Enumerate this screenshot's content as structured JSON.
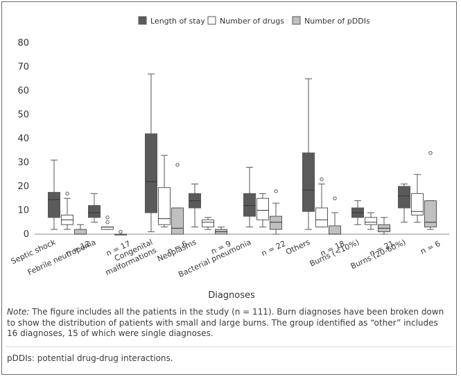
{
  "chart_data": {
    "type": "boxplot",
    "xlabel": "Diagnoses",
    "ylabel": "",
    "ylim": [
      0,
      80
    ],
    "yticks": [
      0,
      10,
      20,
      30,
      40,
      50,
      60,
      70,
      80
    ],
    "legend_position": "top",
    "categories": [
      {
        "label": "Septic shock",
        "n": "n = 12"
      },
      {
        "label": "Febrile neutropenia",
        "n": "n = 17"
      },
      {
        "label": "Congenital malformations",
        "label_lines": [
          "Congenital",
          "malformations"
        ],
        "n": "n = 6"
      },
      {
        "label": "Neoplasms",
        "n": "n = 9"
      },
      {
        "label": "Bacterial pneumonia",
        "n": "n = 22"
      },
      {
        "label": "Others",
        "n": "n = 18"
      },
      {
        "label": "Burns (<10%)",
        "n": "n = 21"
      },
      {
        "label": "Burns (20-60%)",
        "n": "n = 6"
      }
    ],
    "series": [
      {
        "name": "Length of stay",
        "color": "#5a5a5a",
        "boxes": [
          {
            "min": 2,
            "q1": 7,
            "median": 14.5,
            "q3": 17.5,
            "max": 31,
            "outliers": []
          },
          {
            "min": 5,
            "q1": 7,
            "median": 9,
            "q3": 12,
            "max": 17,
            "outliers": []
          },
          {
            "min": 1,
            "q1": 9,
            "median": 22,
            "q3": 42,
            "max": 67,
            "outliers": []
          },
          {
            "min": 3,
            "q1": 11,
            "median": 14,
            "q3": 17,
            "max": 21,
            "outliers": []
          },
          {
            "min": 3,
            "q1": 7.5,
            "median": 12,
            "q3": 17,
            "max": 28,
            "outliers": []
          },
          {
            "min": 2,
            "q1": 9.5,
            "median": 18.5,
            "q3": 34,
            "max": 65,
            "outliers": []
          },
          {
            "min": 4,
            "q1": 7,
            "median": 9,
            "q3": 11,
            "max": 14,
            "outliers": []
          },
          {
            "min": 5,
            "q1": 11,
            "median": 16,
            "q3": 20,
            "max": 21,
            "outliers": []
          }
        ]
      },
      {
        "name": "Number of drugs",
        "color": "#ffffff",
        "boxes": [
          {
            "min": 2,
            "q1": 4,
            "median": 6,
            "q3": 8,
            "max": 15,
            "outliers": [
              17
            ]
          },
          {
            "min": 2,
            "q1": 2,
            "median": 3,
            "q3": 3,
            "max": 3,
            "outliers": [
              5,
              7
            ]
          },
          {
            "min": 3,
            "q1": 4,
            "median": 6.5,
            "q3": 19.5,
            "max": 33,
            "outliers": []
          },
          {
            "min": 2,
            "q1": 3,
            "median": 5,
            "q3": 6,
            "max": 7,
            "outliers": []
          },
          {
            "min": 3,
            "q1": 6,
            "median": 10,
            "q3": 15,
            "max": 17,
            "outliers": []
          },
          {
            "min": 3,
            "q1": 3,
            "median": 6,
            "q3": 11,
            "max": 21,
            "outliers": [
              23
            ]
          },
          {
            "min": 2,
            "q1": 4,
            "median": 5,
            "q3": 7,
            "max": 9,
            "outliers": []
          },
          {
            "min": 5,
            "q1": 8,
            "median": 9.5,
            "q3": 17,
            "max": 25,
            "outliers": []
          }
        ]
      },
      {
        "name": "Number of pDDIs",
        "color": "#c0c0c0",
        "boxes": [
          {
            "min": 0,
            "q1": 0,
            "median": 0,
            "q3": 2,
            "max": 4,
            "outliers": []
          },
          {
            "min": 0,
            "q1": 0,
            "median": 0,
            "q3": 0,
            "max": 0,
            "outliers": [
              1
            ]
          },
          {
            "min": 0,
            "q1": 0,
            "median": 2.5,
            "q3": 11,
            "max": 11,
            "outliers": [
              29
            ]
          },
          {
            "min": 0,
            "q1": 0,
            "median": 1,
            "q3": 2,
            "max": 3,
            "outliers": []
          },
          {
            "min": 0,
            "q1": 2,
            "median": 5,
            "q3": 7.5,
            "max": 13,
            "outliers": [
              18
            ]
          },
          {
            "min": 0,
            "q1": 0,
            "median": 0,
            "q3": 3.5,
            "max": 9,
            "outliers": [
              15
            ]
          },
          {
            "min": 0,
            "q1": 1,
            "median": 2.5,
            "q3": 4,
            "max": 7,
            "outliers": []
          },
          {
            "min": 2,
            "q1": 3,
            "median": 5,
            "q3": 14,
            "max": 14,
            "outliers": [
              34
            ]
          }
        ]
      }
    ]
  },
  "note": {
    "prefix": "Note:",
    "text": " The figure includes all the patients in the study (n = 111). Burn diagnoses have been broken down to show the distribution of patients with small and large burns. The group identified as “other” includes 16 diagnoses, 15 of which were single diagnoses."
  },
  "abbreviation": "pDDIs: potential drug-drug interactions."
}
